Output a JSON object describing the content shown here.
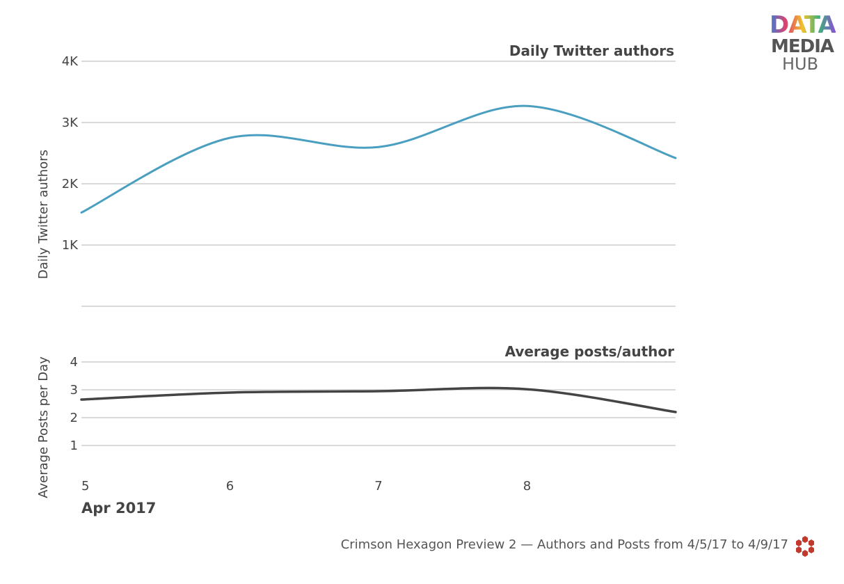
{
  "brand": {
    "line1": "DATA",
    "line2": "MEDIA",
    "line3": "HUB"
  },
  "footer": {
    "text": "Crimson Hexagon Preview 2 — Authors and Posts from 4/5/17 to 4/9/17",
    "icon": "hexagon-cluster-icon"
  },
  "chart_data": [
    {
      "type": "line",
      "title": "Daily Twitter authors",
      "xlabel": "",
      "ylabel": "Daily Twitter authors",
      "x": [
        "2017-04-05",
        "2017-04-06",
        "2017-04-07",
        "2017-04-08",
        "2017-04-09"
      ],
      "series": [
        {
          "name": "",
          "values": [
            1530,
            2750,
            2600,
            3270,
            2420
          ],
          "color": "#4a9fc0"
        }
      ],
      "ylim": [
        0,
        4000
      ],
      "yticks": [
        1000,
        2000,
        3000,
        4000
      ],
      "ytick_labels": [
        "1K",
        "2K",
        "3K",
        "4K"
      ],
      "grid": true
    },
    {
      "type": "line",
      "title": "Average posts/author",
      "xlabel": "",
      "ylabel": "Average Posts per Day",
      "x": [
        "2017-04-05",
        "2017-04-06",
        "2017-04-07",
        "2017-04-08",
        "2017-04-09"
      ],
      "series": [
        {
          "name": "",
          "values": [
            2.65,
            2.9,
            2.95,
            3.02,
            2.2
          ],
          "color": "#444444"
        }
      ],
      "ylim": [
        0,
        4
      ],
      "yticks": [
        1,
        2,
        3,
        4
      ],
      "ytick_labels": [
        "1",
        "2",
        "3",
        "4"
      ],
      "grid": true
    }
  ],
  "xaxis": {
    "ticks": [
      "2017-04-05",
      "2017-04-06",
      "2017-04-07",
      "2017-04-08"
    ],
    "tick_labels": [
      "5",
      "6",
      "7",
      "8"
    ],
    "month_label": "Apr 2017",
    "range": [
      "2017-04-05",
      "2017-04-09"
    ]
  }
}
